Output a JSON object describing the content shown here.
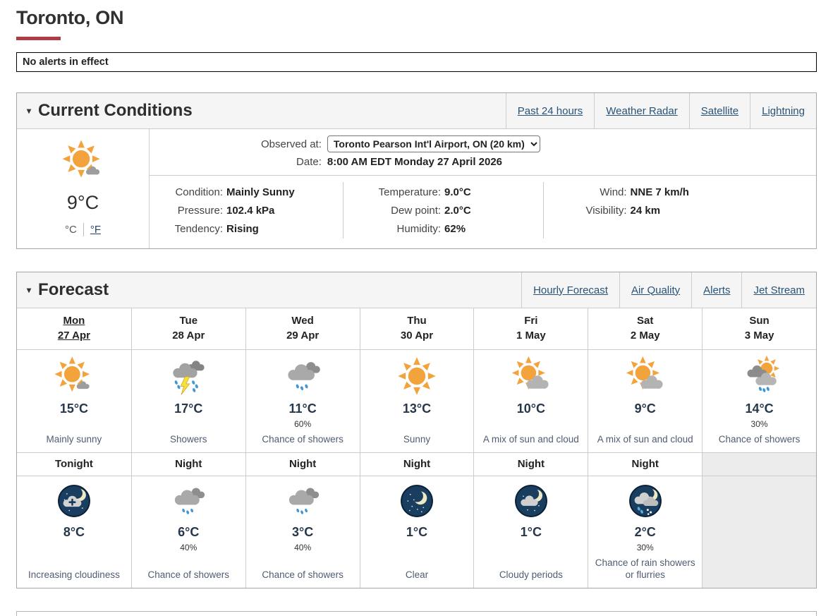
{
  "icons": {
    "caret": "▾"
  },
  "page": {
    "title": "Toronto, ON",
    "alert": "No alerts in effect"
  },
  "current": {
    "title": "Current Conditions",
    "links": {
      "0": "Past 24 hours",
      "1": "Weather Radar",
      "2": "Satellite",
      "3": "Lightning"
    },
    "summary": {
      "icon": "sun-small-cloud",
      "temp": "9°C",
      "unit_c": "°C",
      "unit_f": "°F"
    },
    "observed_label": "Observed at:",
    "station": "Toronto Pearson Int'l Airport, ON (20 km)",
    "date_label": "Date:",
    "date": "8:00 AM EDT Monday 27 April 2026",
    "col1": {
      "0": {
        "label": "Condition:",
        "value": "Mainly Sunny"
      },
      "1": {
        "label": "Pressure:",
        "value": "102.4 kPa"
      },
      "2": {
        "label": "Tendency:",
        "value": "Rising"
      }
    },
    "col2": {
      "0": {
        "label": "Temperature:",
        "value": "9.0°C"
      },
      "1": {
        "label": "Dew point:",
        "value": "2.0°C"
      },
      "2": {
        "label": "Humidity:",
        "value": "62%"
      }
    },
    "col3": {
      "0": {
        "label": "Wind:",
        "value": "NNE 7 km/h"
      },
      "1": {
        "label": "Visibility:",
        "value": "24 km"
      }
    }
  },
  "forecast": {
    "title": "Forecast",
    "links": {
      "0": "Hourly Forecast",
      "1": "Air Quality",
      "2": "Alerts",
      "3": "Jet Stream"
    },
    "days": {
      "0": {
        "day": "Mon",
        "date": "27 Apr",
        "icon": "sun-small-cloud",
        "temp": "15°C",
        "pop": "",
        "cond": "Mainly sunny"
      },
      "1": {
        "day": "Tue",
        "date": "28 Apr",
        "icon": "thunder-showers",
        "temp": "17°C",
        "pop": "",
        "cond": "Showers"
      },
      "2": {
        "day": "Wed",
        "date": "29 Apr",
        "icon": "rain-clouds",
        "temp": "11°C",
        "pop": "60%",
        "cond": "Chance of showers"
      },
      "3": {
        "day": "Thu",
        "date": "30 Apr",
        "icon": "sun",
        "temp": "13°C",
        "pop": "",
        "cond": "Sunny"
      },
      "4": {
        "day": "Fri",
        "date": "1 May",
        "icon": "sun-cloud",
        "temp": "10°C",
        "pop": "",
        "cond": "A mix of sun and cloud"
      },
      "5": {
        "day": "Sat",
        "date": "2 May",
        "icon": "sun-cloud",
        "temp": "9°C",
        "pop": "",
        "cond": "A mix of sun and cloud"
      },
      "6": {
        "day": "Sun",
        "date": "3 May",
        "icon": "cloud-sun-rain",
        "temp": "14°C",
        "pop": "30%",
        "cond": "Chance of showers"
      }
    },
    "nights": {
      "0": {
        "label": "Tonight",
        "icon": "night-increasing-cloud",
        "temp": "8°C",
        "pop": "",
        "cond": "Increasing cloudiness"
      },
      "1": {
        "label": "Night",
        "icon": "rain-clouds",
        "temp": "6°C",
        "pop": "40%",
        "cond": "Chance of showers"
      },
      "2": {
        "label": "Night",
        "icon": "rain-clouds",
        "temp": "3°C",
        "pop": "40%",
        "cond": "Chance of showers"
      },
      "3": {
        "label": "Night",
        "icon": "night-clear",
        "temp": "1°C",
        "pop": "",
        "cond": "Clear"
      },
      "4": {
        "label": "Night",
        "icon": "night-cloudy",
        "temp": "1°C",
        "pop": "",
        "cond": "Cloudy periods"
      },
      "5": {
        "label": "Night",
        "icon": "night-rain-snow",
        "temp": "2°C",
        "pop": "30%",
        "cond": "Chance of rain showers or flurries"
      }
    }
  }
}
